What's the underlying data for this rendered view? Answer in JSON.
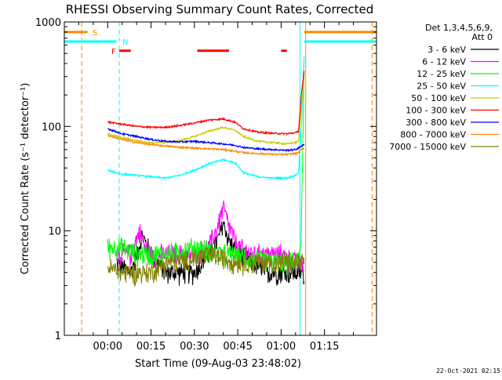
{
  "chart_data": {
    "type": "line",
    "title": "RHESSI Observing Summary Count Rates, Corrected",
    "xlabel": "Start Time (09-Aug-03 23:48:02)",
    "ylabel": "Corrected Count Rate (s⁻¹ detector⁻¹)",
    "yscale": "log",
    "ylim": [
      1,
      1000
    ],
    "xlim_minutes": [
      -15,
      93
    ],
    "x_ticks": [
      {
        "m": 0,
        "label": "00:00"
      },
      {
        "m": 15,
        "label": "00:15"
      },
      {
        "m": 30,
        "label": "00:30"
      },
      {
        "m": 45,
        "label": "00:45"
      },
      {
        "m": 60,
        "label": "01:00"
      },
      {
        "m": 75,
        "label": "01:15"
      }
    ],
    "y_ticks": [
      {
        "v": 1,
        "label": "1"
      },
      {
        "v": 10,
        "label": "10"
      },
      {
        "v": 100,
        "label": "100"
      },
      {
        "v": 1000,
        "label": "1000"
      }
    ],
    "legend": {
      "header": [
        "Det 1,3,4,5,6,9,",
        "Att 0"
      ],
      "position": "right"
    },
    "series": [
      {
        "name": "3 - 6 keV",
        "color": "#000000",
        "style": "noisy",
        "start": 3,
        "end": 68,
        "points": [
          [
            3,
            5
          ],
          [
            8,
            4
          ],
          [
            12,
            9
          ],
          [
            15,
            6
          ],
          [
            20,
            4
          ],
          [
            25,
            4
          ],
          [
            30,
            4
          ],
          [
            35,
            6
          ],
          [
            38,
            8
          ],
          [
            40,
            12
          ],
          [
            42,
            8
          ],
          [
            45,
            6
          ],
          [
            50,
            5
          ],
          [
            55,
            4
          ],
          [
            60,
            4
          ],
          [
            65,
            4
          ],
          [
            68,
            4
          ]
        ]
      },
      {
        "name": "6 - 12 keV",
        "color": "#ff00ff",
        "style": "noisy",
        "start": 3,
        "end": 68,
        "points": [
          [
            3,
            6
          ],
          [
            8,
            6
          ],
          [
            11,
            10
          ],
          [
            13,
            7
          ],
          [
            15,
            6
          ],
          [
            20,
            6
          ],
          [
            25,
            6
          ],
          [
            30,
            6
          ],
          [
            35,
            7
          ],
          [
            38,
            11
          ],
          [
            40,
            17
          ],
          [
            42,
            11
          ],
          [
            45,
            7
          ],
          [
            50,
            6
          ],
          [
            55,
            6
          ],
          [
            60,
            6
          ],
          [
            65,
            5
          ],
          [
            68,
            5
          ]
        ]
      },
      {
        "name": "12 - 25 keV",
        "color": "#00ff00",
        "style": "noisy",
        "start": 0,
        "end": 68,
        "points": [
          [
            0,
            7
          ],
          [
            5,
            7
          ],
          [
            10,
            6
          ],
          [
            20,
            6
          ],
          [
            30,
            7
          ],
          [
            40,
            6
          ],
          [
            50,
            5.5
          ],
          [
            60,
            5
          ],
          [
            66,
            5
          ],
          [
            67,
            10
          ],
          [
            68,
            400
          ]
        ]
      },
      {
        "name": "25 - 50 keV",
        "color": "#00ffff",
        "style": "smooth",
        "start": 0,
        "end": 68,
        "points": [
          [
            0,
            38
          ],
          [
            5,
            35
          ],
          [
            10,
            34
          ],
          [
            15,
            33
          ],
          [
            20,
            32
          ],
          [
            25,
            34
          ],
          [
            30,
            38
          ],
          [
            35,
            44
          ],
          [
            40,
            48
          ],
          [
            44,
            45
          ],
          [
            47,
            36
          ],
          [
            52,
            33
          ],
          [
            57,
            32
          ],
          [
            62,
            32
          ],
          [
            65,
            34
          ],
          [
            66,
            36
          ],
          [
            67,
            100
          ],
          [
            68,
            500
          ]
        ]
      },
      {
        "name": "50 - 100 keV",
        "color": "#cccc00",
        "style": "smooth",
        "start": 0,
        "end": 68,
        "points": [
          [
            0,
            85
          ],
          [
            5,
            78
          ],
          [
            10,
            73
          ],
          [
            15,
            70
          ],
          [
            20,
            70
          ],
          [
            25,
            73
          ],
          [
            30,
            80
          ],
          [
            35,
            90
          ],
          [
            40,
            98
          ],
          [
            44,
            92
          ],
          [
            47,
            80
          ],
          [
            52,
            72
          ],
          [
            57,
            70
          ],
          [
            62,
            68
          ],
          [
            65,
            70
          ],
          [
            66,
            72
          ],
          [
            67,
            150
          ],
          [
            68,
            300
          ]
        ]
      },
      {
        "name": "100 - 300 keV",
        "color": "#ff0000",
        "style": "smooth",
        "start": 0,
        "end": 68,
        "points": [
          [
            0,
            110
          ],
          [
            5,
            105
          ],
          [
            10,
            100
          ],
          [
            15,
            98
          ],
          [
            20,
            98
          ],
          [
            25,
            102
          ],
          [
            30,
            108
          ],
          [
            35,
            115
          ],
          [
            40,
            118
          ],
          [
            44,
            110
          ],
          [
            47,
            95
          ],
          [
            52,
            88
          ],
          [
            57,
            86
          ],
          [
            62,
            85
          ],
          [
            65,
            87
          ],
          [
            66,
            90
          ],
          [
            67,
            200
          ],
          [
            68,
            350
          ]
        ]
      },
      {
        "name": "300 - 800 keV",
        "color": "#0000ff",
        "style": "smooth",
        "start": 0,
        "end": 68,
        "points": [
          [
            0,
            95
          ],
          [
            5,
            85
          ],
          [
            10,
            80
          ],
          [
            15,
            75
          ],
          [
            20,
            72
          ],
          [
            25,
            71
          ],
          [
            30,
            72
          ],
          [
            35,
            70
          ],
          [
            40,
            68
          ],
          [
            44,
            66
          ],
          [
            47,
            63
          ],
          [
            52,
            61
          ],
          [
            57,
            60
          ],
          [
            62,
            59
          ],
          [
            65,
            60
          ],
          [
            66,
            62
          ],
          [
            67,
            65
          ],
          [
            68,
            67
          ]
        ]
      },
      {
        "name": "800 - 7000 keV",
        "color": "#ff8800",
        "style": "smooth",
        "start": 0,
        "end": 68,
        "points": [
          [
            0,
            82
          ],
          [
            5,
            75
          ],
          [
            10,
            70
          ],
          [
            15,
            67
          ],
          [
            20,
            65
          ],
          [
            25,
            63
          ],
          [
            30,
            62
          ],
          [
            35,
            61
          ],
          [
            40,
            60
          ],
          [
            44,
            58
          ],
          [
            47,
            56
          ],
          [
            52,
            55
          ],
          [
            57,
            54
          ],
          [
            62,
            54
          ],
          [
            65,
            55
          ],
          [
            66,
            56
          ],
          [
            67,
            60
          ],
          [
            68,
            62
          ]
        ]
      },
      {
        "name": "7000 - 15000 keV",
        "color": "#808000",
        "style": "noisy",
        "start": 0,
        "end": 68,
        "points": [
          [
            0,
            4.5
          ],
          [
            5,
            4
          ],
          [
            10,
            4
          ],
          [
            15,
            4
          ],
          [
            20,
            5
          ],
          [
            25,
            5
          ],
          [
            30,
            5.5
          ],
          [
            35,
            6
          ],
          [
            40,
            5.5
          ],
          [
            45,
            5
          ],
          [
            50,
            5
          ],
          [
            55,
            5
          ],
          [
            60,
            5
          ],
          [
            65,
            5
          ],
          [
            68,
            5
          ]
        ]
      }
    ],
    "flag_bars": [
      {
        "label": "S",
        "color": "#ff8800",
        "y": 800,
        "segments": [
          [
            -15,
            -7
          ],
          [
            68,
            93
          ]
        ]
      },
      {
        "label": "N",
        "color": "#00ffff",
        "y": 650,
        "segments": [
          [
            -15,
            3
          ],
          [
            68,
            93
          ]
        ]
      },
      {
        "label": "F",
        "color": "#ff0000",
        "y": 530,
        "segments": [
          [
            4,
            8
          ],
          [
            31,
            42
          ],
          [
            60,
            62
          ]
        ]
      }
    ],
    "vlines": [
      {
        "m": -9,
        "color": "#ff8800",
        "style": "dashed"
      },
      {
        "m": 4,
        "color": "#00ffff",
        "style": "dashed"
      },
      {
        "m": 66.5,
        "color": "#00ffff",
        "style": "solid"
      },
      {
        "m": 68.5,
        "color": "#ff8800",
        "style": "solid"
      },
      {
        "m": 91.5,
        "color": "#00ffff",
        "style": "dashed"
      },
      {
        "m": 91.5,
        "color": "#ff8800",
        "style": "dashed"
      }
    ],
    "timestamp": "22-Oct-2021 02:15"
  }
}
